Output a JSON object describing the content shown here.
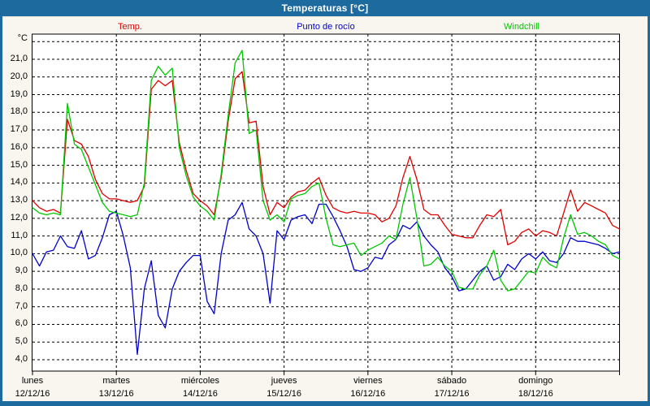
{
  "window": {
    "title": "Temperaturas [°C]"
  },
  "legend": {
    "items": [
      {
        "label": "Temp.",
        "color": "#e00000"
      },
      {
        "label": "Punto de rocío",
        "color": "#0000cd"
      },
      {
        "label": "Windchill",
        "color": "#00c800"
      }
    ]
  },
  "axis": {
    "unit_label": "°C",
    "y_tick_labels": [
      "21,0",
      "20,0",
      "19,0",
      "18,0",
      "17,0",
      "16,0",
      "15,0",
      "14,0",
      "13,0",
      "12,0",
      "11,0",
      "10,0",
      "9,0",
      "8,0",
      "7,0",
      "6,0",
      "5,0",
      "4,0"
    ]
  },
  "colors": {
    "titlebar": "#1d6a9e",
    "frame": "#000000",
    "plot_background": "#ffffff",
    "window_background": "#f8f6ee",
    "grid": "#000000"
  },
  "chart_data": {
    "type": "line",
    "title": "Temperaturas [°C]",
    "ylabel": "°C",
    "ylim": [
      4,
      22
    ],
    "y_labeled_range": [
      4,
      21
    ],
    "grid": true,
    "legend_position": "top",
    "x_description": "hours since lunes 12/12/16 00:00, sample step 2 h, total 168 h (7 days)",
    "step_hours": 2,
    "total_hours": 168,
    "days": [
      {
        "name": "lunes",
        "date": "12/12/16"
      },
      {
        "name": "martes",
        "date": "13/12/16"
      },
      {
        "name": "miércoles",
        "date": "14/12/16"
      },
      {
        "name": "jueves",
        "date": "15/12/16"
      },
      {
        "name": "viernes",
        "date": "16/12/16"
      },
      {
        "name": "sábado",
        "date": "17/12/16"
      },
      {
        "name": "domingo",
        "date": "18/12/16"
      }
    ],
    "series": [
      {
        "name": "Temp.",
        "color": "#e00000",
        "values": [
          13.0,
          12.6,
          12.4,
          12.5,
          12.3,
          17.6,
          16.4,
          16.2,
          15.5,
          14.2,
          13.4,
          13.1,
          13.1,
          13.0,
          12.9,
          13.0,
          13.8,
          19.3,
          19.8,
          19.5,
          19.8,
          16.3,
          14.7,
          13.4,
          13.0,
          12.7,
          12.2,
          14.3,
          17.5,
          19.9,
          20.3,
          17.4,
          17.5,
          13.8,
          12.2,
          12.9,
          12.6,
          13.2,
          13.5,
          13.6,
          14.0,
          14.3,
          13.3,
          12.6,
          12.4,
          12.3,
          12.4,
          12.3,
          12.3,
          12.2,
          11.8,
          12.0,
          12.7,
          14.3,
          15.5,
          14.2,
          12.5,
          12.2,
          12.2,
          11.6,
          11.1,
          11.0,
          10.9,
          10.9,
          11.6,
          12.2,
          12.1,
          12.5,
          10.5,
          10.7,
          11.2,
          11.4,
          11.0,
          11.3,
          11.2,
          11.0,
          12.3,
          13.6,
          12.4,
          12.9,
          12.7,
          12.5,
          12.3,
          11.6,
          11.4
        ]
      },
      {
        "name": "Punto de rocío",
        "color": "#0000cd",
        "values": [
          10.0,
          9.3,
          10.1,
          10.2,
          11.0,
          10.4,
          10.3,
          11.3,
          9.7,
          9.9,
          10.9,
          12.2,
          12.4,
          11.0,
          9.2,
          4.3,
          8.0,
          9.6,
          6.5,
          5.8,
          8.0,
          9.0,
          9.5,
          9.9,
          9.9,
          7.3,
          6.6,
          10.0,
          11.9,
          12.2,
          12.9,
          11.4,
          11.0,
          10.0,
          7.2,
          11.3,
          10.8,
          11.9,
          12.1,
          12.2,
          11.7,
          12.8,
          12.8,
          12.1,
          11.3,
          10.4,
          9.1,
          9.0,
          9.2,
          9.8,
          9.7,
          10.5,
          10.8,
          11.6,
          11.4,
          11.8,
          11.0,
          10.5,
          10.1,
          9.2,
          8.7,
          7.9,
          8.0,
          8.5,
          9.0,
          9.3,
          8.5,
          8.7,
          9.4,
          9.1,
          9.7,
          10.0,
          9.7,
          10.1,
          9.6,
          9.5,
          10.0,
          10.9,
          10.7,
          10.7,
          10.6,
          10.5,
          10.3,
          10.0,
          10.1
        ]
      },
      {
        "name": "Windchill",
        "color": "#00c800",
        "values": [
          12.6,
          12.3,
          12.2,
          12.3,
          12.2,
          18.5,
          16.2,
          15.9,
          14.9,
          13.9,
          12.9,
          12.4,
          12.3,
          12.2,
          12.1,
          12.2,
          14.0,
          19.8,
          20.6,
          20.1,
          20.5,
          16.0,
          14.4,
          13.2,
          12.7,
          12.4,
          11.9,
          14.5,
          17.8,
          20.8,
          21.5,
          16.8,
          17.0,
          13.0,
          11.9,
          12.2,
          11.8,
          13.1,
          13.3,
          13.4,
          13.8,
          14.0,
          12.0,
          10.5,
          10.4,
          10.5,
          10.6,
          9.9,
          10.2,
          10.4,
          10.6,
          11.0,
          10.8,
          12.8,
          14.3,
          12.0,
          9.3,
          9.4,
          9.8,
          9.3,
          9.0,
          8.1,
          8.0,
          8.0,
          8.8,
          9.3,
          10.2,
          8.5,
          7.9,
          8.0,
          8.5,
          9.0,
          8.9,
          9.8,
          9.4,
          9.2,
          10.9,
          12.2,
          11.1,
          11.2,
          11.0,
          10.7,
          10.5,
          9.9,
          9.7
        ]
      }
    ]
  }
}
